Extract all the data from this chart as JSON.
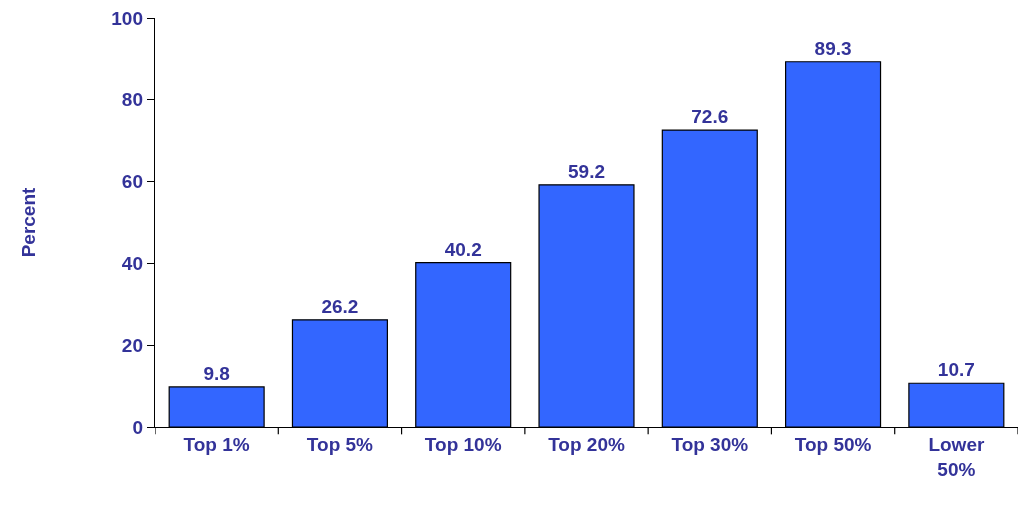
{
  "chart_data": {
    "type": "bar",
    "ylabel": "Percent",
    "categories": [
      "Top 1%",
      "Top 5%",
      "Top 10%",
      "Top 20%",
      "Top 30%",
      "Top 50%",
      "Lower 50%"
    ],
    "values": [
      9.8,
      26.2,
      40.2,
      59.2,
      72.6,
      89.3,
      10.7
    ],
    "color": "#3366ff",
    "ylim": [
      0,
      100
    ],
    "yticks": [
      0,
      20,
      40,
      60,
      80,
      100
    ],
    "grid": false,
    "data_labels": true
  }
}
